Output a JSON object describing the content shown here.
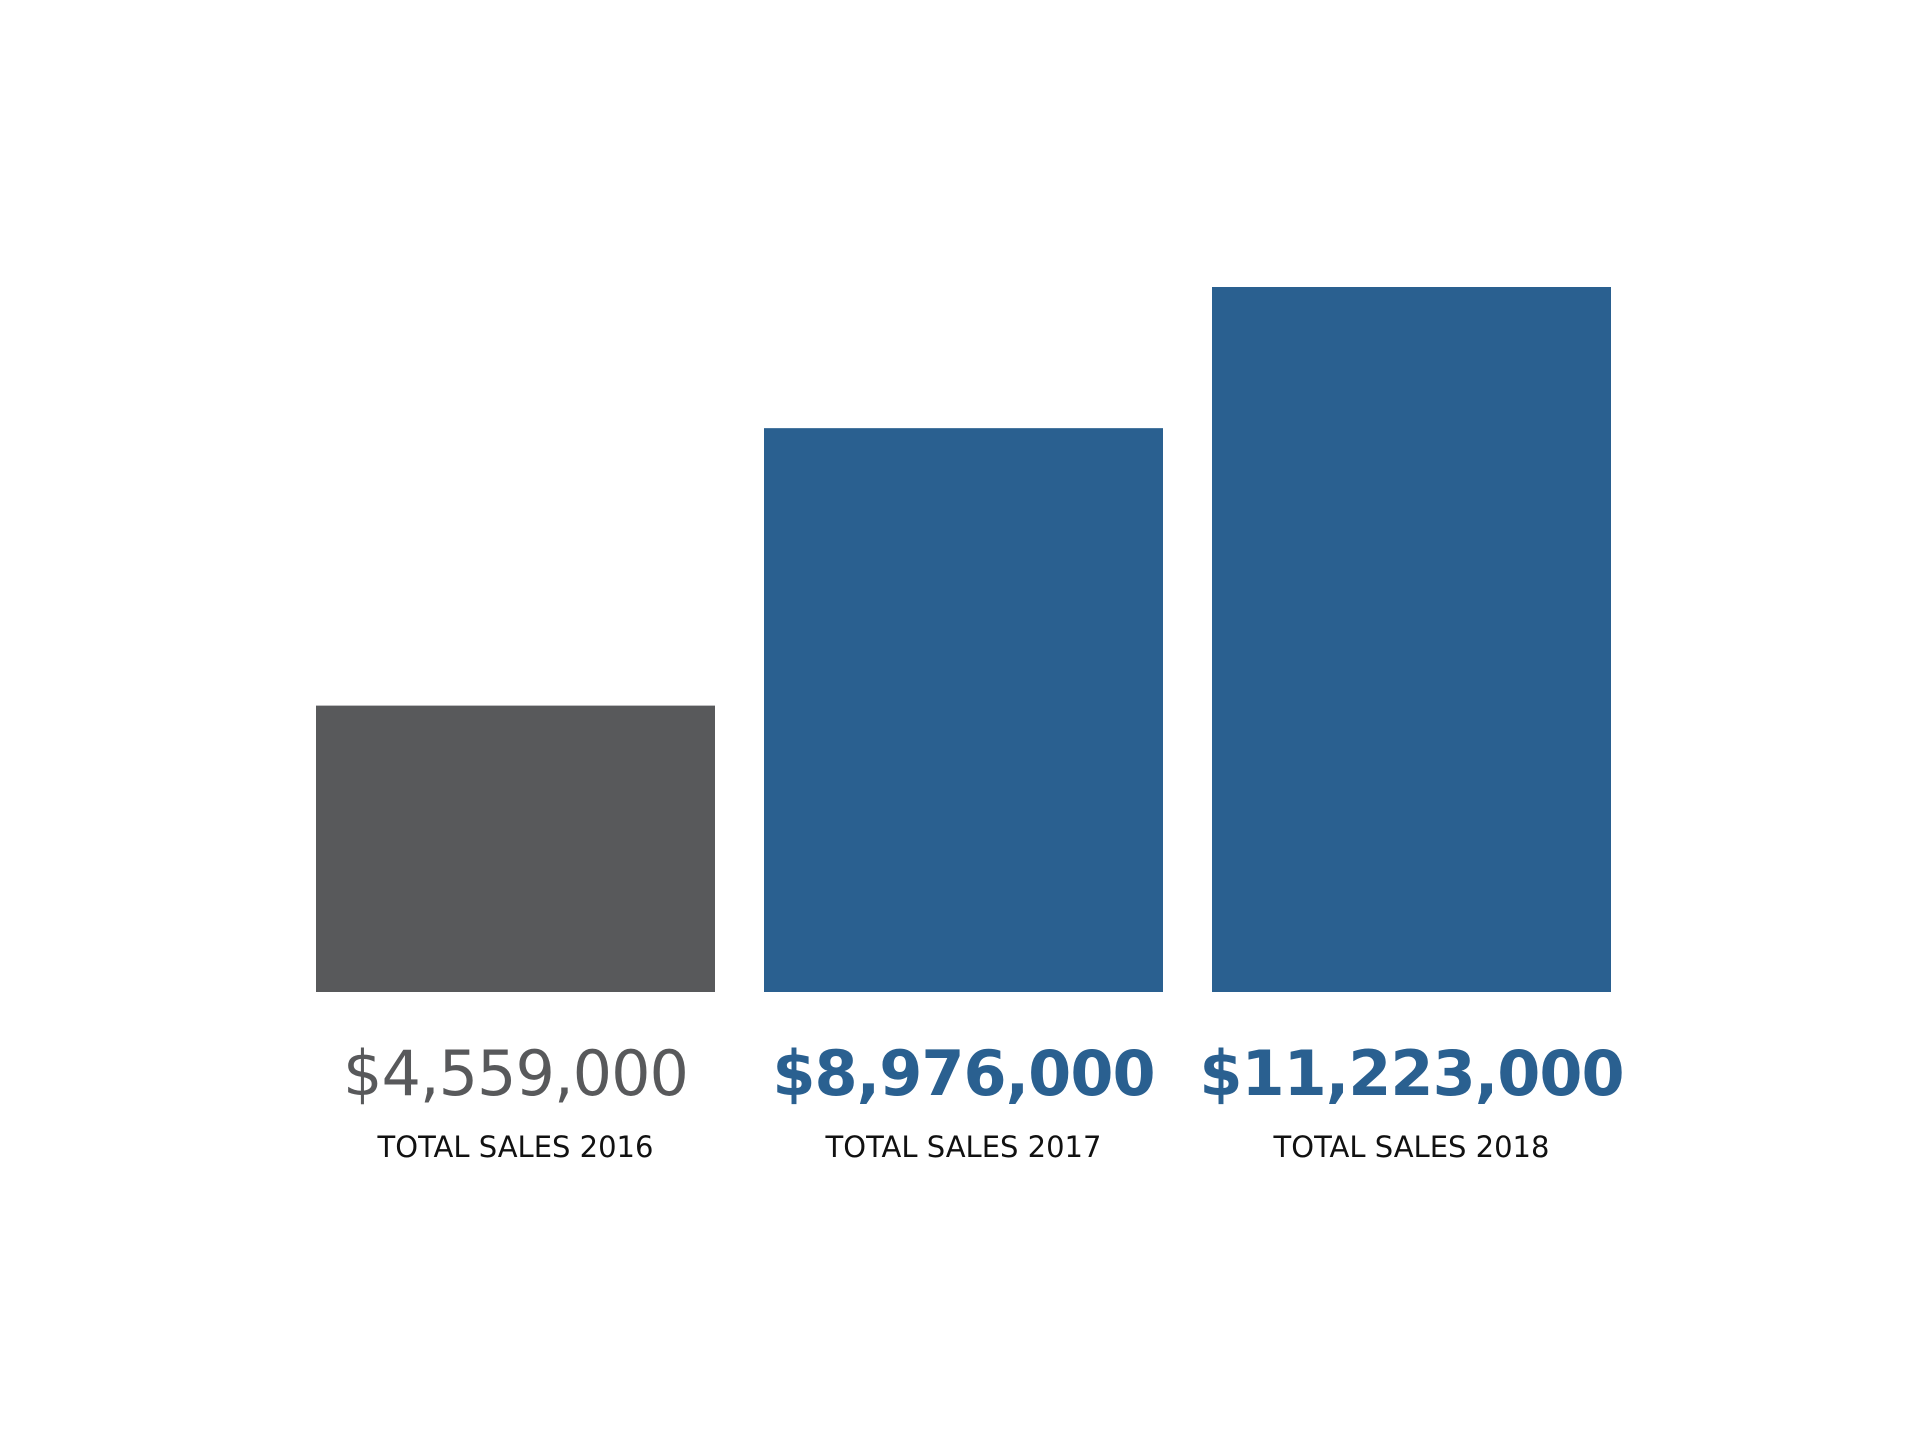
{
  "chart_data": {
    "type": "bar",
    "categories": [
      "TOTAL SALES 2016",
      "TOTAL SALES 2017",
      "TOTAL SALES 2018"
    ],
    "values": [
      4559000,
      8976000,
      11223000
    ],
    "value_labels": [
      "$4,559,000",
      "$8,976,000",
      "$11,223,000"
    ],
    "colors": [
      "#58595b",
      "#2a6090",
      "#2a6090"
    ]
  }
}
